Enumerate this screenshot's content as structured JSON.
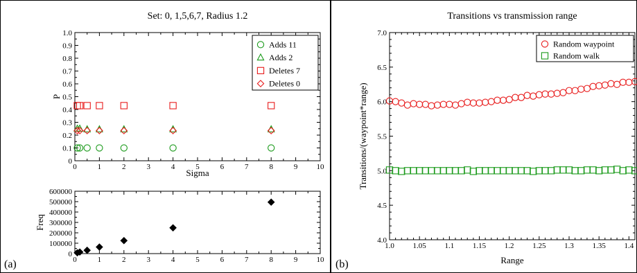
{
  "colors": {
    "green": "#1a9a1a",
    "red": "#e81b1b",
    "black": "#000000"
  },
  "panels": {
    "left_label": "(a)",
    "right_label": "(b)"
  },
  "chart_data": [
    {
      "type": "scatter",
      "title": "Set: 0, 1,5,6,7, Radius 1.2",
      "xlabel": "Sigma",
      "ylabel": "P",
      "xlim": [
        0,
        10
      ],
      "ylim": [
        0,
        1
      ],
      "xticks": [
        "0",
        "1",
        "2",
        "3",
        "4",
        "5",
        "6",
        "7",
        "8",
        "9",
        "10"
      ],
      "yticks": [
        "0",
        "0.1",
        "0.2",
        "0.3",
        "0.4",
        "0.5",
        "0.6",
        "0.7",
        "0.8",
        "0.9",
        "1.0"
      ],
      "grid": false,
      "legend_position": "top-right",
      "series": [
        {
          "name": "Adds 11",
          "marker": "circle",
          "color": "#1a9a1a",
          "x": [
            0.1,
            0.2,
            0.5,
            1,
            2,
            4,
            8
          ],
          "y": [
            0.1,
            0.1,
            0.1,
            0.1,
            0.1,
            0.1,
            0.1
          ]
        },
        {
          "name": "Adds 2",
          "marker": "triangle",
          "color": "#1a9a1a",
          "x": [
            0.1,
            0.2,
            0.5,
            1,
            2,
            4,
            8
          ],
          "y": [
            0.25,
            0.25,
            0.245,
            0.245,
            0.245,
            0.245,
            0.245
          ]
        },
        {
          "name": "Deletes 7",
          "marker": "square",
          "color": "#e81b1b",
          "x": [
            0.1,
            0.2,
            0.5,
            1,
            2,
            4,
            8
          ],
          "y": [
            0.43,
            0.43,
            0.43,
            0.43,
            0.43,
            0.43,
            0.43
          ]
        },
        {
          "name": "Deletes 0",
          "marker": "diamond",
          "color": "#e81b1b",
          "x": [
            0.1,
            0.2,
            0.5,
            1,
            2,
            4,
            8
          ],
          "y": [
            0.235,
            0.235,
            0.235,
            0.235,
            0.235,
            0.235,
            0.235
          ]
        }
      ]
    },
    {
      "type": "scatter",
      "title": "",
      "xlabel": "",
      "ylabel": "Freq",
      "xlim": [
        0,
        10
      ],
      "ylim": [
        0,
        600000
      ],
      "xticks": [
        "0",
        "1",
        "2",
        "3",
        "4",
        "5",
        "6",
        "7",
        "8",
        "9",
        "10"
      ],
      "yticks": [
        "0",
        "100000",
        "200000",
        "300000",
        "400000",
        "500000",
        "600000"
      ],
      "grid": false,
      "series": [
        {
          "marker": "diamond-filled",
          "color": "#000000",
          "x": [
            0.1,
            0.2,
            0.5,
            1,
            2,
            4,
            8
          ],
          "y": [
            8000,
            15000,
            32000,
            63000,
            125000,
            248000,
            495000
          ]
        }
      ]
    },
    {
      "type": "scatter",
      "title": "Transitions vs transmission range",
      "xlabel": "Range",
      "ylabel": "Transitions/(waypoint*range)",
      "xlim": [
        1.0,
        1.41
      ],
      "ylim": [
        4.0,
        7.0
      ],
      "xticks": [
        "1.0",
        "1.05",
        "1.1",
        "1.15",
        "1.2",
        "1.25",
        "1.3",
        "1.35",
        "1.4"
      ],
      "yticks": [
        "4.0",
        "4.5",
        "5.0",
        "5.5",
        "6.0",
        "6.5",
        "7.0"
      ],
      "grid": false,
      "legend_position": "top-right",
      "series": [
        {
          "name": "Random waypoint",
          "marker": "circle",
          "color": "#e81b1b",
          "x": [
            1.0,
            1.01,
            1.02,
            1.03,
            1.04,
            1.05,
            1.06,
            1.07,
            1.08,
            1.09,
            1.1,
            1.11,
            1.12,
            1.13,
            1.14,
            1.15,
            1.16,
            1.17,
            1.18,
            1.19,
            1.2,
            1.21,
            1.22,
            1.23,
            1.24,
            1.25,
            1.26,
            1.27,
            1.28,
            1.29,
            1.3,
            1.31,
            1.32,
            1.33,
            1.34,
            1.35,
            1.36,
            1.37,
            1.38,
            1.39,
            1.4,
            1.41
          ],
          "y": [
            6.01,
            6.0,
            5.98,
            5.95,
            5.97,
            5.96,
            5.96,
            5.94,
            5.95,
            5.96,
            5.96,
            5.95,
            5.97,
            5.99,
            5.98,
            5.98,
            5.99,
            6.0,
            6.02,
            6.02,
            6.03,
            6.06,
            6.06,
            6.09,
            6.08,
            6.1,
            6.11,
            6.11,
            6.12,
            6.13,
            6.16,
            6.16,
            6.18,
            6.19,
            6.22,
            6.23,
            6.24,
            6.26,
            6.25,
            6.28,
            6.28,
            6.29
          ]
        },
        {
          "name": "Random walk",
          "marker": "square",
          "color": "#1a9a1a",
          "x": [
            1.0,
            1.01,
            1.02,
            1.03,
            1.04,
            1.05,
            1.06,
            1.07,
            1.08,
            1.09,
            1.1,
            1.11,
            1.12,
            1.13,
            1.14,
            1.15,
            1.16,
            1.17,
            1.18,
            1.19,
            1.2,
            1.21,
            1.22,
            1.23,
            1.24,
            1.25,
            1.26,
            1.27,
            1.28,
            1.29,
            1.3,
            1.31,
            1.32,
            1.33,
            1.34,
            1.35,
            1.36,
            1.37,
            1.38,
            1.39,
            1.4,
            1.41
          ],
          "y": [
            5.01,
            5.0,
            4.99,
            5.0,
            5.0,
            5.0,
            5.0,
            5.0,
            5.0,
            5.0,
            5.0,
            5.0,
            5.0,
            5.01,
            4.99,
            5.0,
            5.0,
            5.0,
            5.0,
            5.0,
            5.0,
            5.0,
            5.0,
            5.0,
            4.99,
            5.0,
            5.0,
            5.0,
            5.01,
            5.01,
            5.01,
            5.0,
            5.0,
            5.01,
            5.01,
            5.0,
            5.01,
            5.01,
            5.02,
            5.0,
            5.01,
            5.0
          ]
        }
      ]
    }
  ]
}
